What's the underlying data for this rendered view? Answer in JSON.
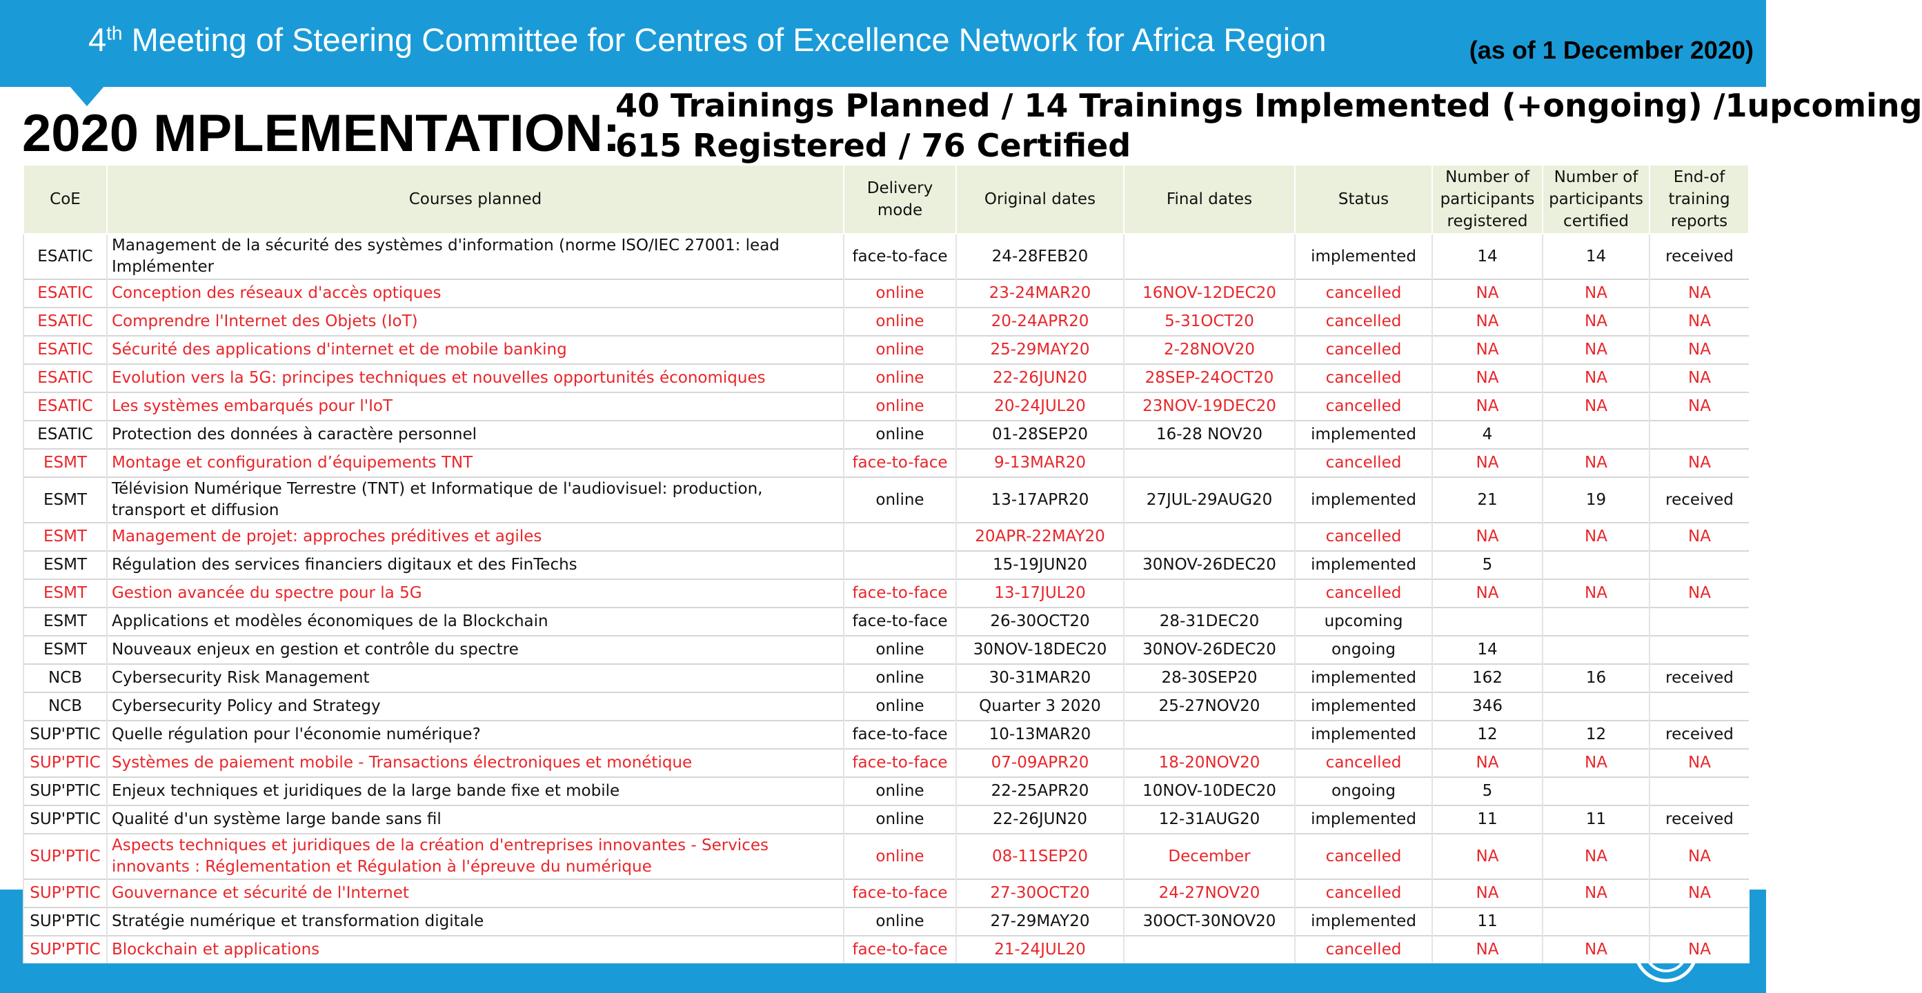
{
  "header": {
    "title": {
      "number": "4",
      "suffix": "th",
      "text": "Meeting of Steering Committee for Centres of Excellence Network for Africa Region"
    },
    "as_of": "(as of 1 December 2020)"
  },
  "heading": "2020 MPLEMENTATION:",
  "summary": [
    "40 Trainings Planned / 14 Trainings Implemented (+ongoing) /1upcoming",
    "615 Registered / 76 Certified"
  ],
  "table": {
    "highlight_color": "#e8262a",
    "columns": [
      "CoE",
      "Courses planned",
      "Delivery mode",
      "Original dates",
      "Final dates",
      "Status",
      "Number of participants registered",
      "Number of participants certified",
      "End-of training reports"
    ],
    "rows": [
      {
        "cells": [
          "ESATIC",
          "Management de la sécurité des systèmes d'information (norme ISO/IEC 27001: lead Implémenter",
          "face-to-face",
          "24-28FEB20",
          null,
          "implemented",
          14,
          14,
          "received"
        ]
      },
      {
        "cells": [
          "ESATIC",
          "Conception des réseaux d'accès optiques",
          "online",
          "23-24MAR20",
          "16NOV-12DEC20",
          "cancelled",
          "NA",
          "NA",
          "NA"
        ],
        "highlight": true
      },
      {
        "cells": [
          "ESATIC",
          "Comprendre l'Internet des Objets (IoT)",
          "online",
          "20-24APR20",
          "5-31OCT20",
          "cancelled",
          "NA",
          "NA",
          "NA"
        ],
        "highlight": true
      },
      {
        "cells": [
          "ESATIC",
          "Sécurité des applications d'internet et de mobile banking",
          "online",
          "25-29MAY20",
          "2-28NOV20",
          "cancelled",
          "NA",
          "NA",
          "NA"
        ],
        "highlight": true
      },
      {
        "cells": [
          "ESATIC",
          "Evolution vers la 5G: principes techniques et nouvelles opportunités économiques",
          "online",
          "22-26JUN20",
          "28SEP-24OCT20",
          "cancelled",
          "NA",
          "NA",
          "NA"
        ],
        "highlight": true
      },
      {
        "cells": [
          "ESATIC",
          "Les systèmes embarqués pour l'IoT",
          "online",
          "20-24JUL20",
          "23NOV-19DEC20",
          "cancelled",
          "NA",
          "NA",
          "NA"
        ],
        "highlight": true
      },
      {
        "cells": [
          "ESATIC",
          "Protection des données à caractère personnel",
          "online",
          "01-28SEP20",
          "16-28 NOV20",
          "implemented",
          4,
          null,
          null
        ]
      },
      {
        "cells": [
          "ESMT",
          "Montage et configuration d’équipements TNT",
          "face-to-face",
          "9-13MAR20",
          null,
          "cancelled",
          "NA",
          "NA",
          "NA"
        ],
        "highlight": true
      },
      {
        "cells": [
          "ESMT",
          "Télévision Numérique Terrestre (TNT) et Informatique de l'audiovisuel: production, transport et diffusion",
          "online",
          "13-17APR20",
          "27JUL-29AUG20",
          "implemented",
          21,
          19,
          "received"
        ]
      },
      {
        "cells": [
          "ESMT",
          "Management de projet: approches préditives et agiles",
          null,
          "20APR-22MAY20",
          null,
          "cancelled",
          "NA",
          "NA",
          "NA"
        ],
        "highlight": true
      },
      {
        "cells": [
          "ESMT",
          "Régulation des services financiers digitaux et des FinTechs",
          null,
          "15-19JUN20",
          "30NOV-26DEC20",
          "implemented",
          5,
          null,
          null
        ]
      },
      {
        "cells": [
          "ESMT",
          "Gestion avancée du spectre pour la 5G",
          "face-to-face",
          "13-17JUL20",
          null,
          "cancelled",
          "NA",
          "NA",
          "NA"
        ],
        "highlight": true
      },
      {
        "cells": [
          "ESMT",
          "Applications et modèles économiques de la Blockchain",
          "face-to-face",
          "26-30OCT20",
          "28-31DEC20",
          "upcoming",
          null,
          null,
          null
        ]
      },
      {
        "cells": [
          "ESMT",
          "Nouveaux enjeux en gestion et contrôle du spectre",
          "online",
          "30NOV-18DEC20",
          "30NOV-26DEC20",
          "ongoing",
          14,
          null,
          null
        ]
      },
      {
        "cells": [
          "NCB",
          "Cybersecurity Risk Management",
          "online",
          "30-31MAR20",
          "28-30SEP20",
          "implemented",
          162,
          16,
          "received"
        ]
      },
      {
        "cells": [
          "NCB",
          "Cybersecurity Policy and Strategy",
          "online",
          "Quarter 3 2020",
          "25-27NOV20",
          "implemented",
          346,
          null,
          null
        ]
      },
      {
        "cells": [
          "SUP'PTIC",
          "Quelle régulation pour l'économie numérique?",
          "face-to-face",
          "10-13MAR20",
          null,
          "implemented",
          12,
          12,
          "received"
        ]
      },
      {
        "cells": [
          "SUP'PTIC",
          "Systèmes de paiement mobile - Transactions électroniques et monétique",
          "face-to-face",
          "07-09APR20",
          "18-20NOV20",
          "cancelled",
          "NA",
          "NA",
          "NA"
        ],
        "highlight": true
      },
      {
        "cells": [
          "SUP'PTIC",
          "Enjeux techniques et juridiques de la large bande fixe et mobile",
          "online",
          "22-25APR20",
          "10NOV-10DEC20",
          "ongoing",
          5,
          null,
          null
        ]
      },
      {
        "cells": [
          "SUP'PTIC",
          "Qualité d'un système large bande sans fil",
          "online",
          "22-26JUN20",
          "12-31AUG20",
          "implemented",
          11,
          11,
          "received"
        ]
      },
      {
        "cells": [
          "SUP'PTIC",
          "Aspects techniques et juridiques de la création d'entreprises innovantes - Services innovants : Réglementation et Régulation à l'épreuve du numérique",
          "online",
          "08-11SEP20",
          "December",
          "cancelled",
          "NA",
          "NA",
          "NA"
        ],
        "highlight": true
      },
      {
        "cells": [
          "SUP'PTIC",
          "Gouvernance et sécurité de l'Internet",
          "face-to-face",
          "27-30OCT20",
          "24-27NOV20",
          "cancelled",
          "NA",
          "NA",
          "NA"
        ],
        "highlight": true
      },
      {
        "cells": [
          "SUP'PTIC",
          "Stratégie numérique et transformation digitale",
          "online",
          "27-29MAY20",
          "30OCT-30NOV20",
          "implemented",
          11,
          null,
          null
        ]
      },
      {
        "cells": [
          "SUP'PTIC",
          "Blockchain et applications",
          "face-to-face",
          "21-24JUL20",
          null,
          "cancelled",
          "NA",
          "NA",
          "NA"
        ],
        "highlight": true
      }
    ]
  }
}
